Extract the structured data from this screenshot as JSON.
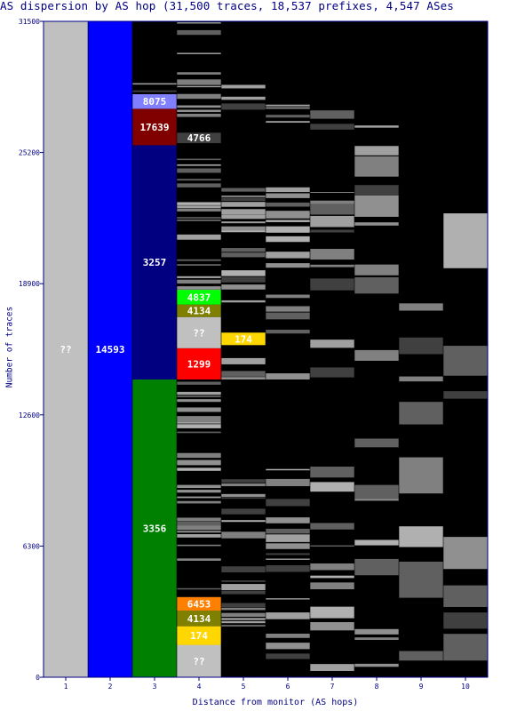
{
  "chart_data": {
    "type": "bar",
    "title": "AS dispersion by AS hop (31,500 traces, 18,537 prefixes, 4,547 ASes",
    "xlabel": "Distance from monitor (AS hops)",
    "ylabel": "Number of traces",
    "ylim": [
      0,
      31500
    ],
    "yticks": [
      "0",
      "6300",
      "12600",
      "18900",
      "25200",
      "31500"
    ],
    "categories": [
      "1",
      "2",
      "3",
      "4",
      "5",
      "6",
      "7",
      "8",
      "9",
      "10"
    ],
    "columns": [
      {
        "hop": "1",
        "segments": [
          {
            "label": "??",
            "y0": 0,
            "y1": 31500,
            "color": "#c0c0c0"
          }
        ]
      },
      {
        "hop": "2",
        "segments": [
          {
            "label": "14593",
            "y0": 0,
            "y1": 31500,
            "color": "#0000ff"
          }
        ]
      },
      {
        "hop": "3",
        "segments": [
          {
            "label": "3356",
            "y0": 0,
            "y1": 14300,
            "color": "#008000"
          },
          {
            "label": "3257",
            "y0": 14300,
            "y1": 25550,
            "color": "#000080"
          },
          {
            "label": "17639",
            "y0": 25550,
            "y1": 27300,
            "color": "#800000"
          },
          {
            "label": "8075",
            "y0": 27300,
            "y1": 28000,
            "color": "#8080ff"
          }
        ]
      },
      {
        "hop": "4",
        "segments": [
          {
            "label": "??",
            "y0": 0,
            "y1": 1550,
            "color": "#c0c0c0"
          },
          {
            "label": "174",
            "y0": 1550,
            "y1": 2450,
            "color": "#ffd700"
          },
          {
            "label": "4134",
            "y0": 2450,
            "y1": 3200,
            "color": "#808000"
          },
          {
            "label": "6453",
            "y0": 3200,
            "y1": 3850,
            "color": "#ff8000"
          },
          {
            "label": "1299",
            "y0": 14300,
            "y1": 15800,
            "color": "#ff0000"
          },
          {
            "label": "??",
            "y0": 15800,
            "y1": 17300,
            "color": "#c0c0c0"
          },
          {
            "label": "4134",
            "y0": 17300,
            "y1": 17900,
            "color": "#808000"
          },
          {
            "label": "4837",
            "y0": 17900,
            "y1": 18600,
            "color": "#00ff00"
          },
          {
            "label": "4766",
            "y0": 25650,
            "y1": 26150,
            "color": "#404040"
          }
        ]
      },
      {
        "hop": "5",
        "segments": [
          {
            "label": "174",
            "y0": 15950,
            "y1": 16550,
            "color": "#ffd700"
          }
        ]
      }
    ]
  }
}
